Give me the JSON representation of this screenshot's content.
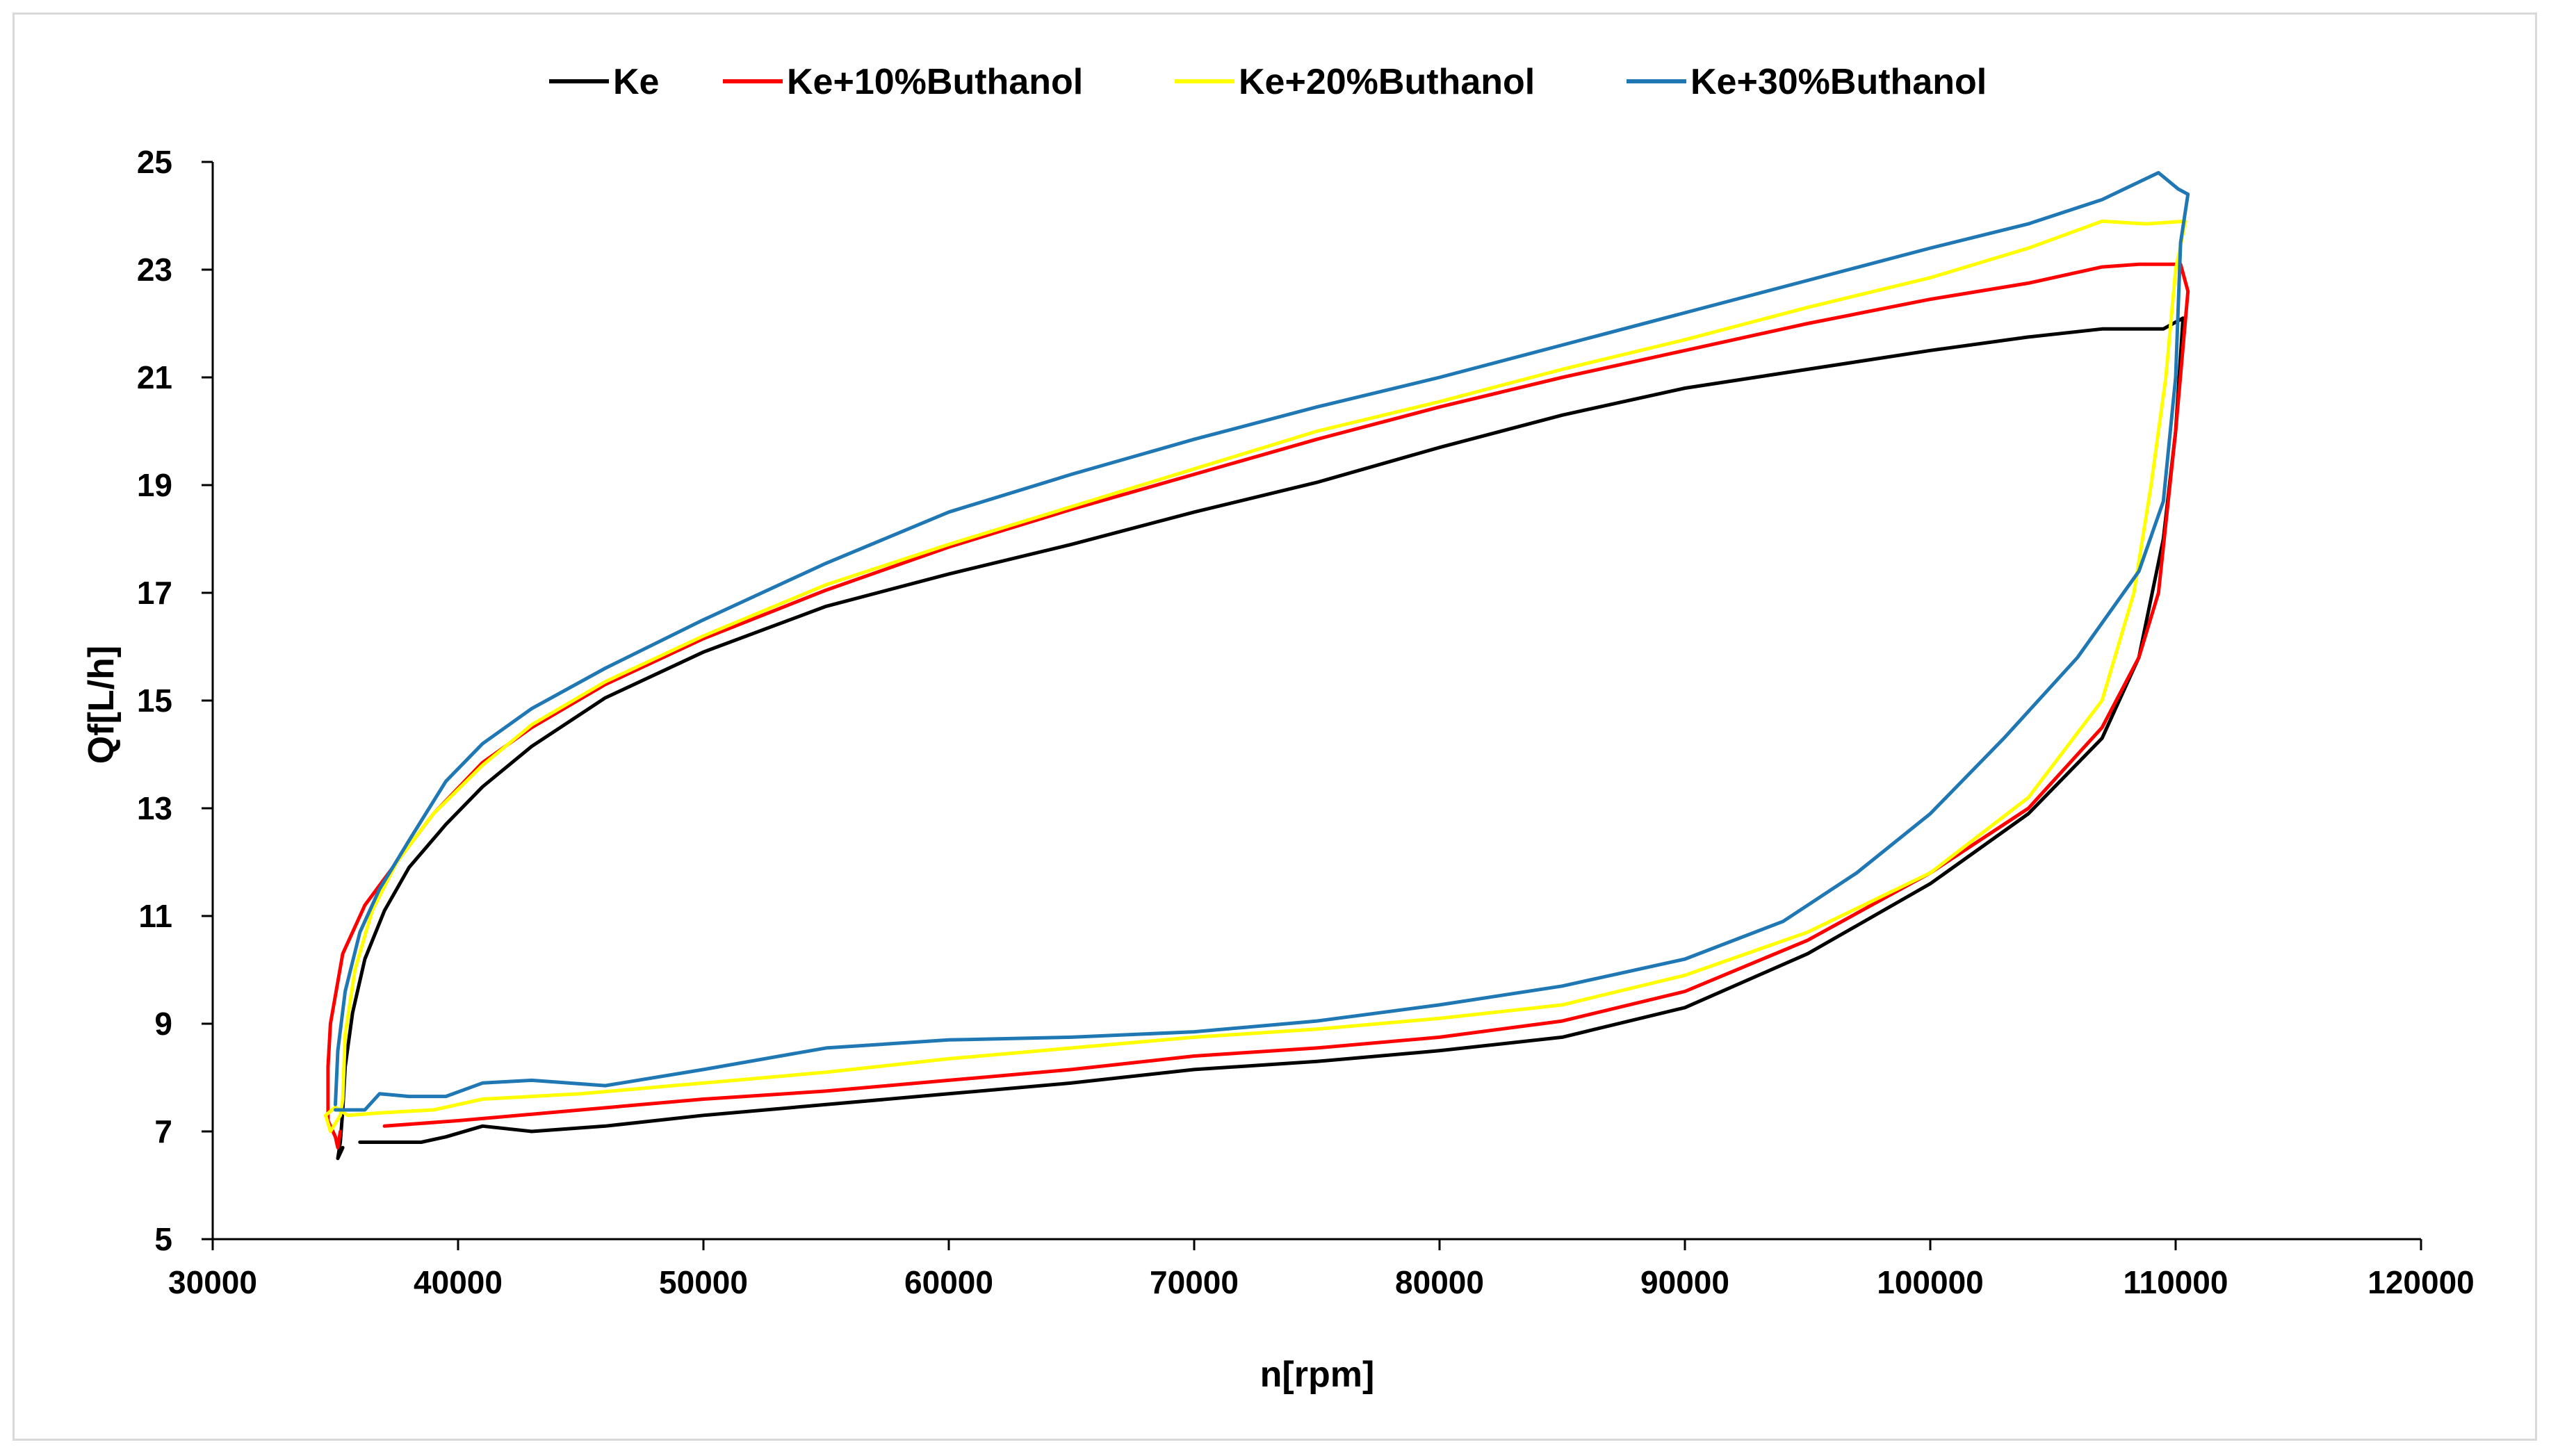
{
  "chart_data": {
    "type": "line",
    "title": "",
    "xlabel": "n[rpm]",
    "ylabel": "Qf[L/h]",
    "xlim": [
      30000,
      120000
    ],
    "ylim": [
      5,
      25
    ],
    "xticks": [
      30000,
      40000,
      50000,
      60000,
      70000,
      80000,
      90000,
      100000,
      110000,
      120000
    ],
    "yticks": [
      5,
      7,
      9,
      11,
      13,
      15,
      17,
      19,
      21,
      23,
      25
    ],
    "grid": false,
    "legend_position": "top",
    "series": [
      {
        "name": "Ke",
        "color": "#000000",
        "points": [
          [
            36000,
            6.8
          ],
          [
            38500,
            6.8
          ],
          [
            39500,
            6.9
          ],
          [
            41000,
            7.1
          ],
          [
            43000,
            7.0
          ],
          [
            46000,
            7.1
          ],
          [
            50000,
            7.3
          ],
          [
            55000,
            7.5
          ],
          [
            60000,
            7.7
          ],
          [
            65000,
            7.9
          ],
          [
            70000,
            8.15
          ],
          [
            75000,
            8.3
          ],
          [
            80000,
            8.5
          ],
          [
            85000,
            8.75
          ],
          [
            90000,
            9.3
          ],
          [
            95000,
            10.3
          ],
          [
            100000,
            11.6
          ],
          [
            104000,
            12.9
          ],
          [
            107000,
            14.3
          ],
          [
            108500,
            15.8
          ],
          [
            109500,
            18.0
          ],
          [
            110000,
            20.0
          ],
          [
            110300,
            22.1
          ],
          [
            109500,
            21.9
          ],
          [
            107000,
            21.9
          ],
          [
            104000,
            21.75
          ],
          [
            100000,
            21.5
          ],
          [
            95000,
            21.15
          ],
          [
            90000,
            20.8
          ],
          [
            85000,
            20.3
          ],
          [
            80000,
            19.7
          ],
          [
            75000,
            19.05
          ],
          [
            70000,
            18.5
          ],
          [
            65000,
            17.9
          ],
          [
            60000,
            17.35
          ],
          [
            55000,
            16.75
          ],
          [
            50000,
            15.9
          ],
          [
            46000,
            15.05
          ],
          [
            43000,
            14.15
          ],
          [
            41000,
            13.4
          ],
          [
            39500,
            12.7
          ],
          [
            38000,
            11.9
          ],
          [
            37000,
            11.1
          ],
          [
            36200,
            10.2
          ],
          [
            35700,
            9.2
          ],
          [
            35400,
            8.2
          ],
          [
            35300,
            7.4
          ],
          [
            35200,
            6.8
          ],
          [
            35100,
            6.5
          ],
          [
            35300,
            6.7
          ]
        ]
      },
      {
        "name": "Ke+10%Buthanol",
        "color": "#ff0000",
        "points": [
          [
            37000,
            7.1
          ],
          [
            40000,
            7.2
          ],
          [
            45000,
            7.4
          ],
          [
            50000,
            7.6
          ],
          [
            55000,
            7.75
          ],
          [
            60000,
            7.95
          ],
          [
            65000,
            8.15
          ],
          [
            70000,
            8.4
          ],
          [
            75000,
            8.55
          ],
          [
            80000,
            8.75
          ],
          [
            85000,
            9.05
          ],
          [
            90000,
            9.6
          ],
          [
            95000,
            10.55
          ],
          [
            100000,
            11.8
          ],
          [
            104000,
            13.0
          ],
          [
            107000,
            14.5
          ],
          [
            108500,
            15.8
          ],
          [
            109300,
            17.0
          ],
          [
            110000,
            20.0
          ],
          [
            110500,
            22.6
          ],
          [
            110200,
            23.1
          ],
          [
            108500,
            23.1
          ],
          [
            107000,
            23.05
          ],
          [
            104000,
            22.75
          ],
          [
            100000,
            22.45
          ],
          [
            95000,
            22.0
          ],
          [
            90000,
            21.5
          ],
          [
            85000,
            21.0
          ],
          [
            80000,
            20.45
          ],
          [
            75000,
            19.85
          ],
          [
            70000,
            19.2
          ],
          [
            65000,
            18.55
          ],
          [
            60000,
            17.85
          ],
          [
            55000,
            17.05
          ],
          [
            50000,
            16.15
          ],
          [
            46000,
            15.3
          ],
          [
            43000,
            14.5
          ],
          [
            41000,
            13.85
          ],
          [
            39000,
            12.9
          ],
          [
            37500,
            12.0
          ],
          [
            36200,
            11.2
          ],
          [
            35300,
            10.3
          ],
          [
            34800,
            9.0
          ],
          [
            34700,
            8.2
          ],
          [
            34700,
            7.2
          ],
          [
            35000,
            6.9
          ],
          [
            35100,
            6.7
          ],
          [
            35200,
            7.0
          ]
        ]
      },
      {
        "name": "Ke+20%Buthanol",
        "color": "#ffff00",
        "points": [
          [
            35500,
            7.3
          ],
          [
            37000,
            7.35
          ],
          [
            39000,
            7.4
          ],
          [
            41000,
            7.6
          ],
          [
            45000,
            7.7
          ],
          [
            50000,
            7.9
          ],
          [
            55000,
            8.1
          ],
          [
            60000,
            8.35
          ],
          [
            65000,
            8.55
          ],
          [
            70000,
            8.75
          ],
          [
            75000,
            8.9
          ],
          [
            80000,
            9.1
          ],
          [
            85000,
            9.35
          ],
          [
            90000,
            9.9
          ],
          [
            95000,
            10.7
          ],
          [
            100000,
            11.8
          ],
          [
            104000,
            13.2
          ],
          [
            107000,
            15.0
          ],
          [
            108300,
            17.0
          ],
          [
            109000,
            19.0
          ],
          [
            109600,
            21.0
          ],
          [
            110000,
            23.0
          ],
          [
            110400,
            23.9
          ],
          [
            108800,
            23.85
          ],
          [
            107000,
            23.9
          ],
          [
            104000,
            23.4
          ],
          [
            100000,
            22.85
          ],
          [
            95000,
            22.3
          ],
          [
            90000,
            21.7
          ],
          [
            85000,
            21.15
          ],
          [
            80000,
            20.55
          ],
          [
            75000,
            20.0
          ],
          [
            70000,
            19.3
          ],
          [
            65000,
            18.6
          ],
          [
            60000,
            17.9
          ],
          [
            55000,
            17.15
          ],
          [
            50000,
            16.2
          ],
          [
            46000,
            15.35
          ],
          [
            43000,
            14.55
          ],
          [
            41000,
            13.8
          ],
          [
            39000,
            12.9
          ],
          [
            37500,
            12.0
          ],
          [
            36500,
            11.1
          ],
          [
            35800,
            10.0
          ],
          [
            35400,
            8.8
          ],
          [
            35300,
            7.6
          ],
          [
            35200,
            7.3
          ],
          [
            34800,
            7.0
          ],
          [
            34600,
            7.3
          ],
          [
            35000,
            7.45
          ],
          [
            35500,
            7.3
          ]
        ]
      },
      {
        "name": "Ke+30%Buthanol",
        "color": "#1f77b4",
        "points": [
          [
            35000,
            7.4
          ],
          [
            36200,
            7.4
          ],
          [
            36800,
            7.7
          ],
          [
            38000,
            7.65
          ],
          [
            39500,
            7.65
          ],
          [
            41000,
            7.9
          ],
          [
            43000,
            7.95
          ],
          [
            46000,
            7.85
          ],
          [
            50000,
            8.15
          ],
          [
            55000,
            8.55
          ],
          [
            60000,
            8.7
          ],
          [
            65000,
            8.75
          ],
          [
            70000,
            8.85
          ],
          [
            75000,
            9.05
          ],
          [
            80000,
            9.35
          ],
          [
            85000,
            9.7
          ],
          [
            90000,
            10.2
          ],
          [
            94000,
            10.9
          ],
          [
            97000,
            11.8
          ],
          [
            100000,
            12.9
          ],
          [
            103000,
            14.3
          ],
          [
            106000,
            15.8
          ],
          [
            108500,
            17.4
          ],
          [
            109500,
            18.7
          ],
          [
            110000,
            21.0
          ],
          [
            110200,
            23.5
          ],
          [
            110500,
            24.4
          ],
          [
            110100,
            24.5
          ],
          [
            109300,
            24.8
          ],
          [
            107000,
            24.3
          ],
          [
            104000,
            23.85
          ],
          [
            100000,
            23.4
          ],
          [
            95000,
            22.8
          ],
          [
            90000,
            22.2
          ],
          [
            85000,
            21.6
          ],
          [
            80000,
            21.0
          ],
          [
            75000,
            20.45
          ],
          [
            70000,
            19.85
          ],
          [
            65000,
            19.2
          ],
          [
            60000,
            18.5
          ],
          [
            55000,
            17.55
          ],
          [
            50000,
            16.5
          ],
          [
            46000,
            15.6
          ],
          [
            43000,
            14.85
          ],
          [
            41000,
            14.2
          ],
          [
            39500,
            13.5
          ],
          [
            38000,
            12.4
          ],
          [
            36800,
            11.5
          ],
          [
            36000,
            10.7
          ],
          [
            35400,
            9.6
          ],
          [
            35100,
            8.5
          ],
          [
            35000,
            7.5
          ]
        ]
      }
    ]
  }
}
